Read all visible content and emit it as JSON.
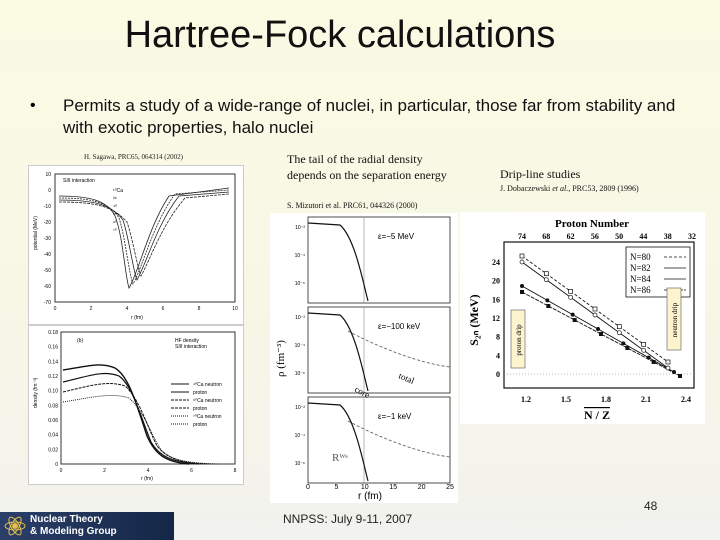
{
  "slide": {
    "title": "Hartree-Fock calculations",
    "bullet": "Permits a study of a wide-range of nuclei, in particular, those far from stability and with exotic properties, halo nuclei"
  },
  "left_figure": {
    "citation": "H. Sagawa, PRC65, 064314 (2002)",
    "top_panel": {
      "interaction": "SIII interaction",
      "ylabel": "potential (MeV)",
      "xlabel": "r (fm)",
      "xticks": [
        "0",
        "2",
        "4",
        "6",
        "8",
        "10"
      ],
      "yticks": [
        "10",
        "0",
        "-10",
        "-20",
        "-30",
        "-40",
        "-50",
        "-60",
        "-70"
      ],
      "curve_labels": [
        "¹⁰Ca",
        "²⁸",
        "⁴⁰",
        "⁵⁰",
        "⁶⁰",
        "⁷⁰"
      ]
    },
    "bottom_panel": {
      "tag": "(b)",
      "legend_title": "HF density",
      "interaction": "SIII interaction",
      "ylabel": "density (fm⁻³)",
      "xlabel": "r (fm)",
      "yticks": [
        "0.18",
        "0.16",
        "0.14",
        "0.12",
        "0.10",
        "0.08",
        "0.06",
        "0.04",
        "0.02",
        "0"
      ],
      "xticks": [
        "0",
        "2",
        "4",
        "6",
        "8"
      ],
      "legend": [
        "⁴⁰Ca neutron",
        "proton",
        "⁶⁰Ca neutron",
        "proton",
        "⁷⁰Ca neutron",
        "proton"
      ]
    }
  },
  "middle_figure": {
    "caption": "The tail of the radial density depends on the separation energy",
    "citation": "S. Mizutori et al. PRC61, 044326 (2000)",
    "ylabel": "ρ (fm⁻³)",
    "xlabel": "r (fm)",
    "xticks": [
      "0",
      "5",
      "10",
      "15",
      "20",
      "25"
    ],
    "panels": [
      {
        "energy": "ε=−5 MeV"
      },
      {
        "energy": "ε=−100 keV"
      },
      {
        "energy": "ε=−1 keV"
      }
    ],
    "labels": {
      "core": "core",
      "total": "total",
      "rws": "Rᵂˢ"
    },
    "ytick_labels": [
      "10°",
      "10⁻²",
      "10⁻⁴",
      "10⁻⁶",
      "10⁻⁸"
    ]
  },
  "right_figure": {
    "heading": "Drip-line studies",
    "citation_author": "J. Dobaczewski ",
    "citation_etal": "et al.",
    "citation_rest": ", PRC53, 2809 (1996)",
    "top_axis_title": "Proton Number",
    "top_ticks": [
      "74",
      "68",
      "62",
      "56",
      "50",
      "44",
      "38",
      "32"
    ],
    "ylabel": "S₂ₙ (MeV)",
    "yticks": [
      "24",
      "20",
      "16",
      "12",
      "8",
      "4",
      "0"
    ],
    "xticks": [
      "1.2",
      "1.5",
      "1.8",
      "2.1",
      "2.4"
    ],
    "xlabel": "N / Z",
    "legend": [
      "N=80",
      "N=82",
      "N=84",
      "N=86"
    ],
    "proton_drip": "proton drip",
    "neutron_drip": "neutron drip"
  },
  "footer": {
    "logo_line1": "Nuclear Theory",
    "logo_line2": "& Modeling Group",
    "event": "NNPSS: July 9-11, 2007",
    "page": "48"
  }
}
